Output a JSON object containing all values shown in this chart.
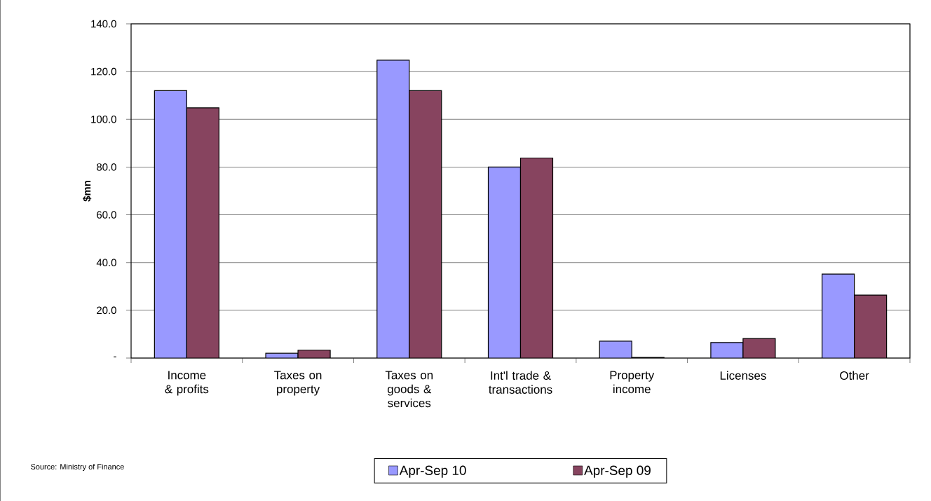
{
  "chart_data": {
    "type": "bar",
    "ylabel": "$mn",
    "categories": [
      "Income & profits",
      "Taxes on property",
      "Taxes on goods & services",
      "Int'l trade & transactions",
      "Property income",
      "Licenses",
      "Other"
    ],
    "series": [
      {
        "name": "Apr-Sep 10",
        "color": "#9999ff",
        "values": [
          112,
          2.0,
          124.8,
          80.0,
          7.1,
          6.5,
          35.2
        ]
      },
      {
        "name": "Apr-Sep 09",
        "color": "#87445f",
        "values": [
          104.8,
          3.3,
          112,
          83.8,
          0.3,
          8.2,
          26.4
        ]
      }
    ],
    "ylim": [
      0,
      140
    ],
    "yticks": [
      {
        "value": 0,
        "label": "-"
      },
      {
        "value": 20,
        "label": "20.0"
      },
      {
        "value": 40,
        "label": "40.0"
      },
      {
        "value": 60,
        "label": "60.0"
      },
      {
        "value": 80,
        "label": "80.0"
      },
      {
        "value": 100,
        "label": "100.0"
      },
      {
        "value": 120,
        "label": "120.0"
      },
      {
        "value": 140,
        "label": "140.0"
      }
    ],
    "grid": "y",
    "legend": "bottom",
    "annotations": [
      "Source: Ministry of Finance"
    ]
  }
}
